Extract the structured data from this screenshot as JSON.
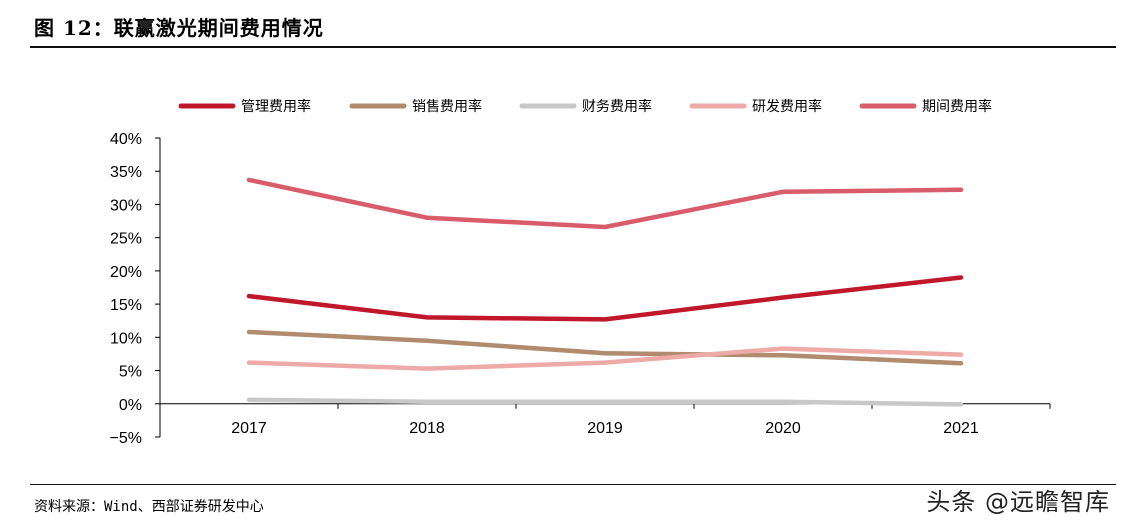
{
  "figure": {
    "title": "图 12：联赢激光期间费用情况",
    "source": "资料来源：Wind、西部证券研发中心",
    "watermark": "头条 @远瞻智库"
  },
  "chart_data": {
    "type": "line",
    "title": "",
    "xlabel": "",
    "ylabel": "",
    "categories": [
      "2017",
      "2018",
      "2019",
      "2020",
      "2021"
    ],
    "ylim": [
      -5,
      40
    ],
    "yticks": [
      -5,
      0,
      5,
      10,
      15,
      20,
      25,
      30,
      35,
      40
    ],
    "ytick_labels": [
      "−5%",
      "0%",
      "5%",
      "10%",
      "15%",
      "20%",
      "25%",
      "30%",
      "35%",
      "40%"
    ],
    "grid": false,
    "legend_position": "top",
    "series": [
      {
        "name": "管理费用率",
        "color": "#c0172b",
        "values": [
          16.2,
          13.0,
          12.7,
          16.0,
          19.0
        ]
      },
      {
        "name": "销售费用率",
        "color": "#b08b6e",
        "values": [
          10.8,
          9.5,
          7.6,
          7.3,
          6.1
        ]
      },
      {
        "name": "财务费用率",
        "color": "#c8c8c8",
        "values": [
          0.6,
          0.3,
          0.3,
          0.3,
          -0.1
        ]
      },
      {
        "name": "研发费用率",
        "color": "#eeaaa6",
        "values": [
          6.2,
          5.3,
          6.2,
          8.3,
          7.4
        ]
      },
      {
        "name": "期间费用率",
        "color": "#d95c6a",
        "values": [
          33.7,
          28.0,
          26.6,
          31.9,
          32.2
        ]
      }
    ]
  }
}
